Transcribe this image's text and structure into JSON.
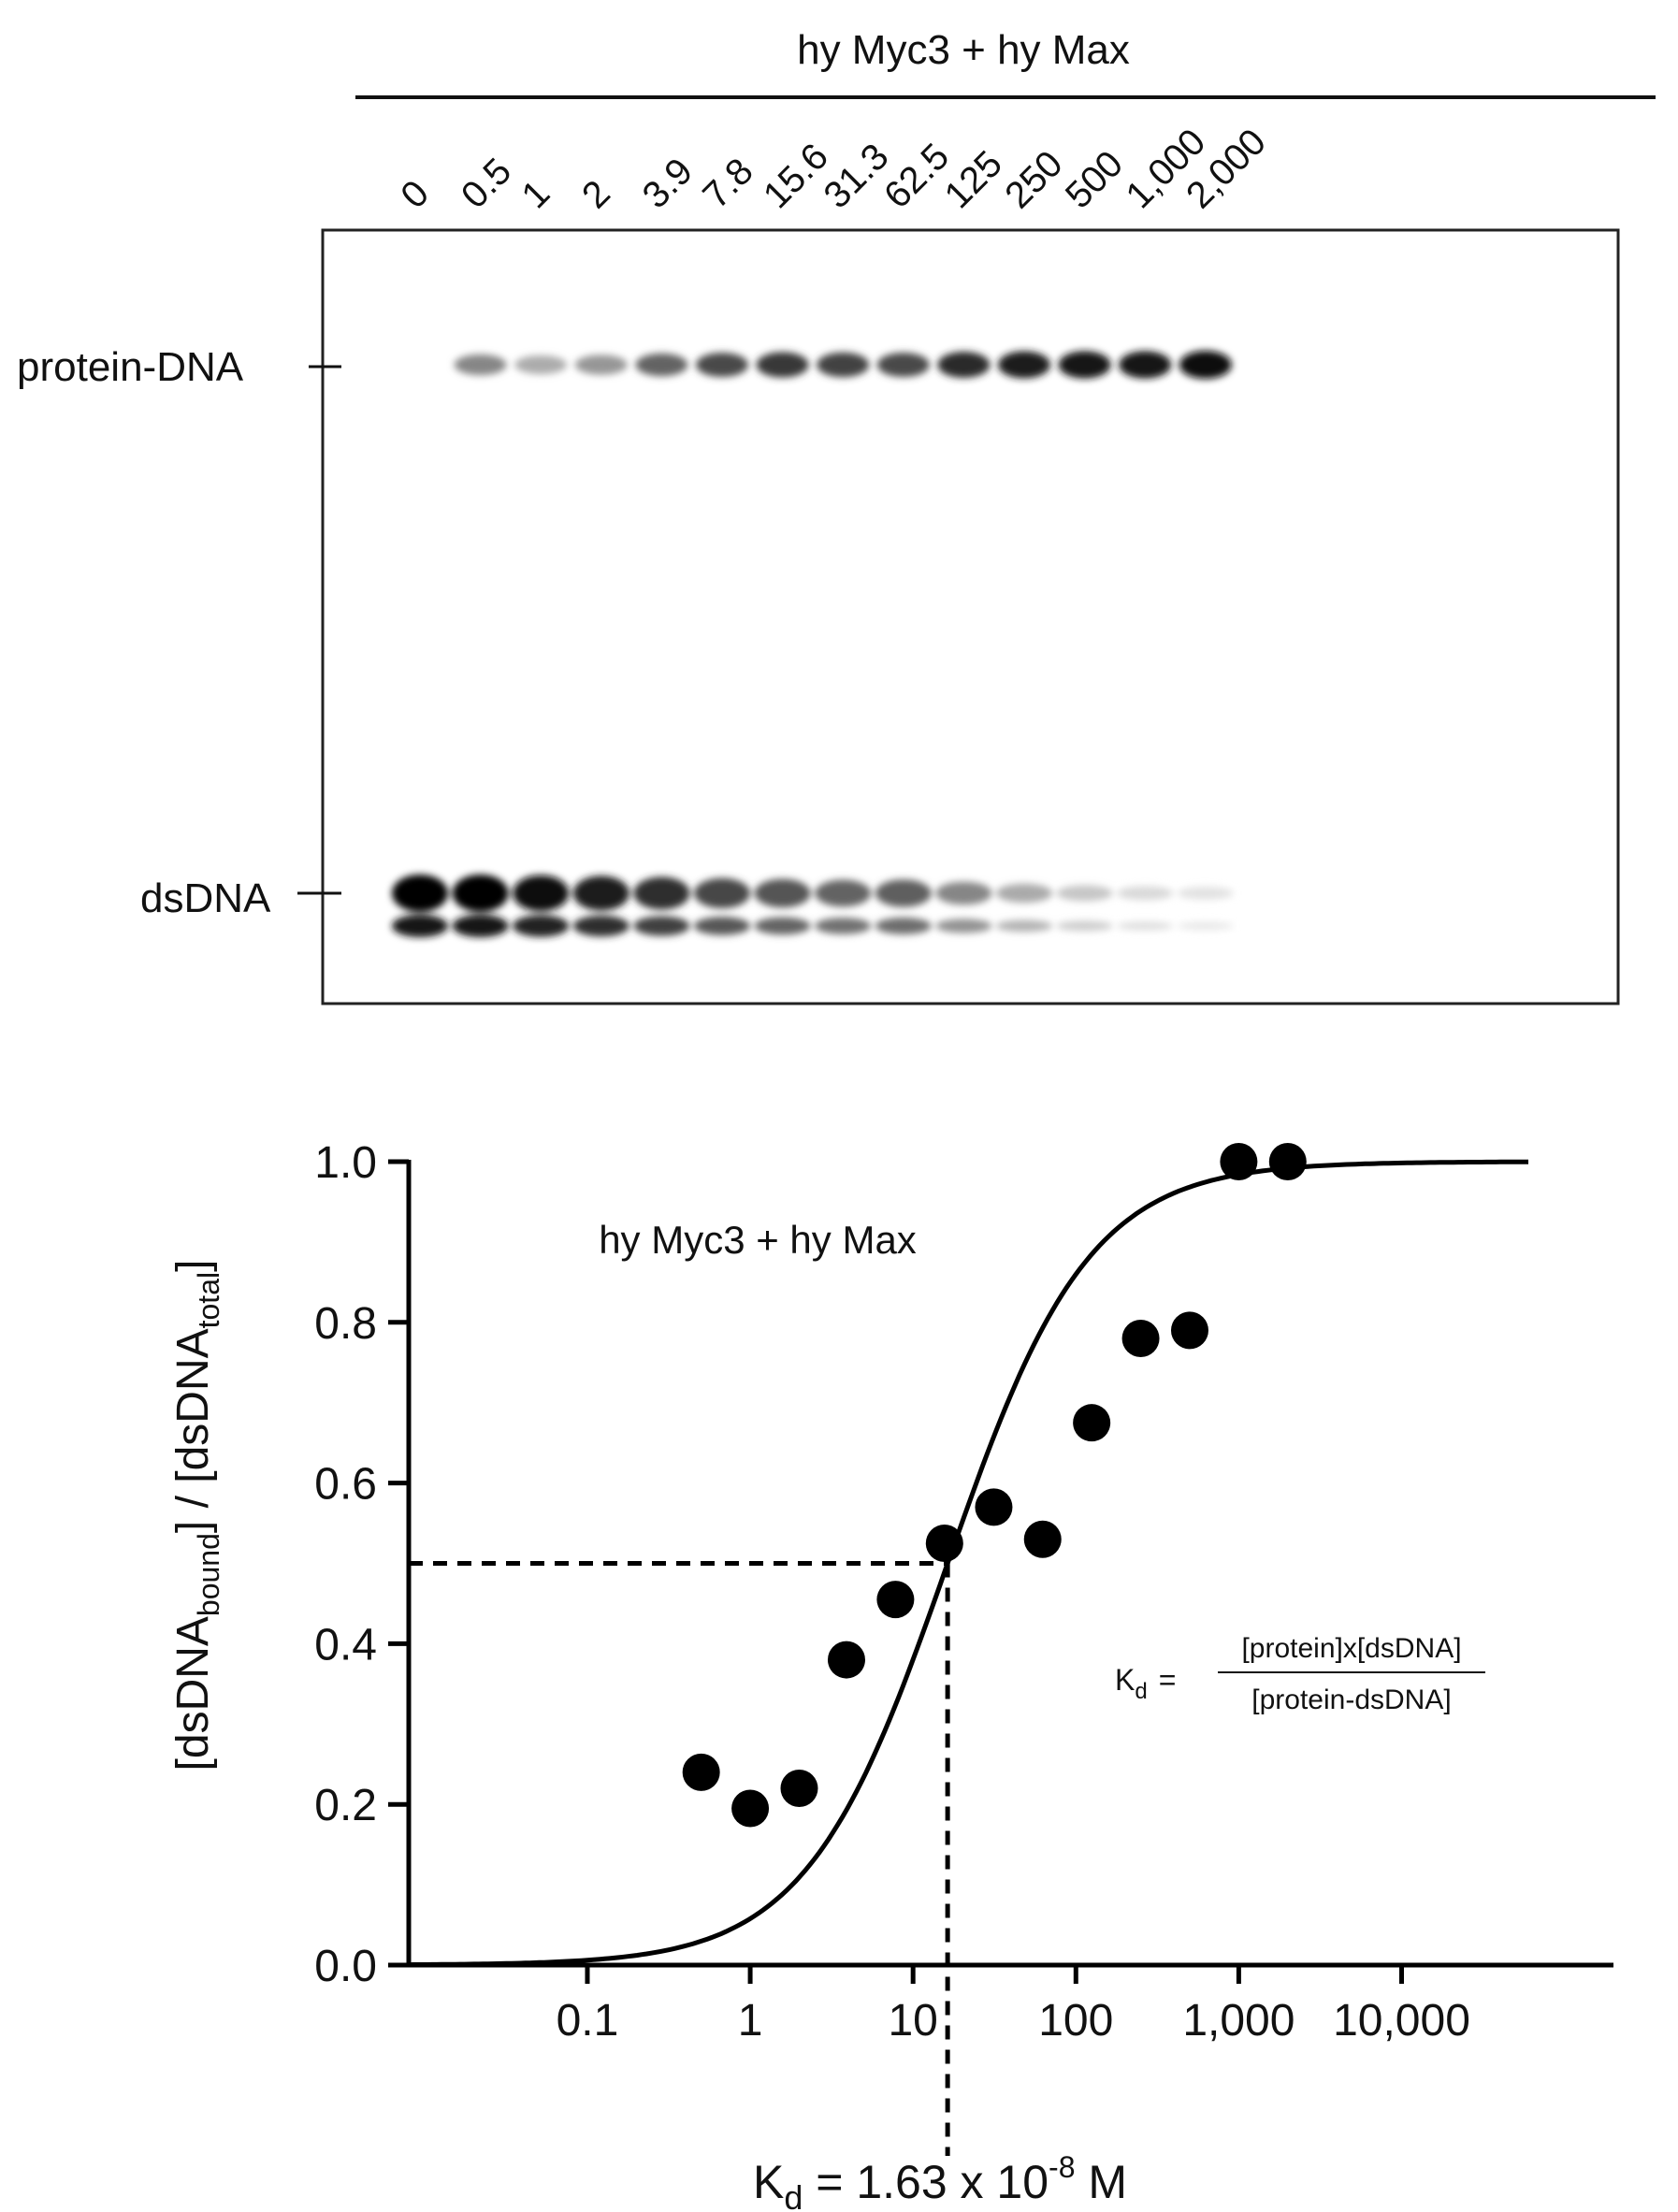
{
  "gel": {
    "title": "hy Myc3 + hy Max",
    "lane_labels": [
      "0",
      "0.5",
      "1",
      "2",
      "3.9",
      "7.8",
      "15.6",
      "31.3",
      "62.5",
      "125",
      "250",
      "500",
      "1,000",
      "2,000"
    ],
    "band_labels": {
      "complex": "protein-DNA",
      "free": "dsDNA"
    },
    "complex_band_intensity": [
      0.0,
      0.45,
      0.28,
      0.38,
      0.6,
      0.72,
      0.8,
      0.75,
      0.72,
      0.85,
      0.92,
      0.95,
      0.95,
      1.0
    ],
    "free_band_intensity": [
      1.0,
      1.0,
      0.95,
      0.9,
      0.82,
      0.72,
      0.66,
      0.6,
      0.62,
      0.45,
      0.3,
      0.18,
      0.1,
      0.06
    ]
  },
  "chart_data": {
    "type": "scatter",
    "title": "hy Myc3 + hy Max",
    "xlabel": "",
    "ylabel": {
      "prefix": "[dsDNA",
      "sub1": "bound",
      "mid": "] / [dsDNA",
      "sub2": "total",
      "suffix": "]"
    },
    "xscale": "log",
    "xlim": [
      0.008,
      200000
    ],
    "ylim": [
      0,
      1.0
    ],
    "x_ticks": [
      {
        "value": 0.1,
        "label": "0.1"
      },
      {
        "value": 1,
        "label": "1"
      },
      {
        "value": 10,
        "label": "10"
      },
      {
        "value": 100,
        "label": "100"
      },
      {
        "value": 1000,
        "label": "1,000"
      },
      {
        "value": 10000,
        "label": "10,000"
      }
    ],
    "y_ticks": [
      {
        "value": 0.0,
        "label": "0.0"
      },
      {
        "value": 0.2,
        "label": "0.2"
      },
      {
        "value": 0.4,
        "label": "0.4"
      },
      {
        "value": 0.6,
        "label": "0.6"
      },
      {
        "value": 0.8,
        "label": "0.8"
      },
      {
        "value": 1.0,
        "label": "1.0"
      }
    ],
    "points": [
      {
        "x": 0.5,
        "y": 0.24
      },
      {
        "x": 1,
        "y": 0.195
      },
      {
        "x": 2,
        "y": 0.22
      },
      {
        "x": 3.9,
        "y": 0.38
      },
      {
        "x": 7.8,
        "y": 0.455
      },
      {
        "x": 15.6,
        "y": 0.525
      },
      {
        "x": 31.3,
        "y": 0.57
      },
      {
        "x": 62.5,
        "y": 0.53
      },
      {
        "x": 125,
        "y": 0.675
      },
      {
        "x": 250,
        "y": 0.78
      },
      {
        "x": 500,
        "y": 0.79
      },
      {
        "x": 1000,
        "y": 1.0
      },
      {
        "x": 2000,
        "y": 1.0
      }
    ],
    "fit": {
      "model": "hyperbolic",
      "kd_nM": 16.3,
      "x_range": [
        0.008,
        60000
      ]
    },
    "reference_y": 0.5,
    "kd_x": 16.3,
    "kd_label": {
      "main": "K",
      "sub": "d",
      "text": " = 1.63 x 10",
      "exp": "-8",
      "unit": " M"
    },
    "equation": {
      "lhs_main": "K",
      "lhs_sub": "d",
      "equals": "=",
      "numerator": "[protein]x[dsDNA]",
      "denominator": "[protein-dsDNA]"
    }
  }
}
